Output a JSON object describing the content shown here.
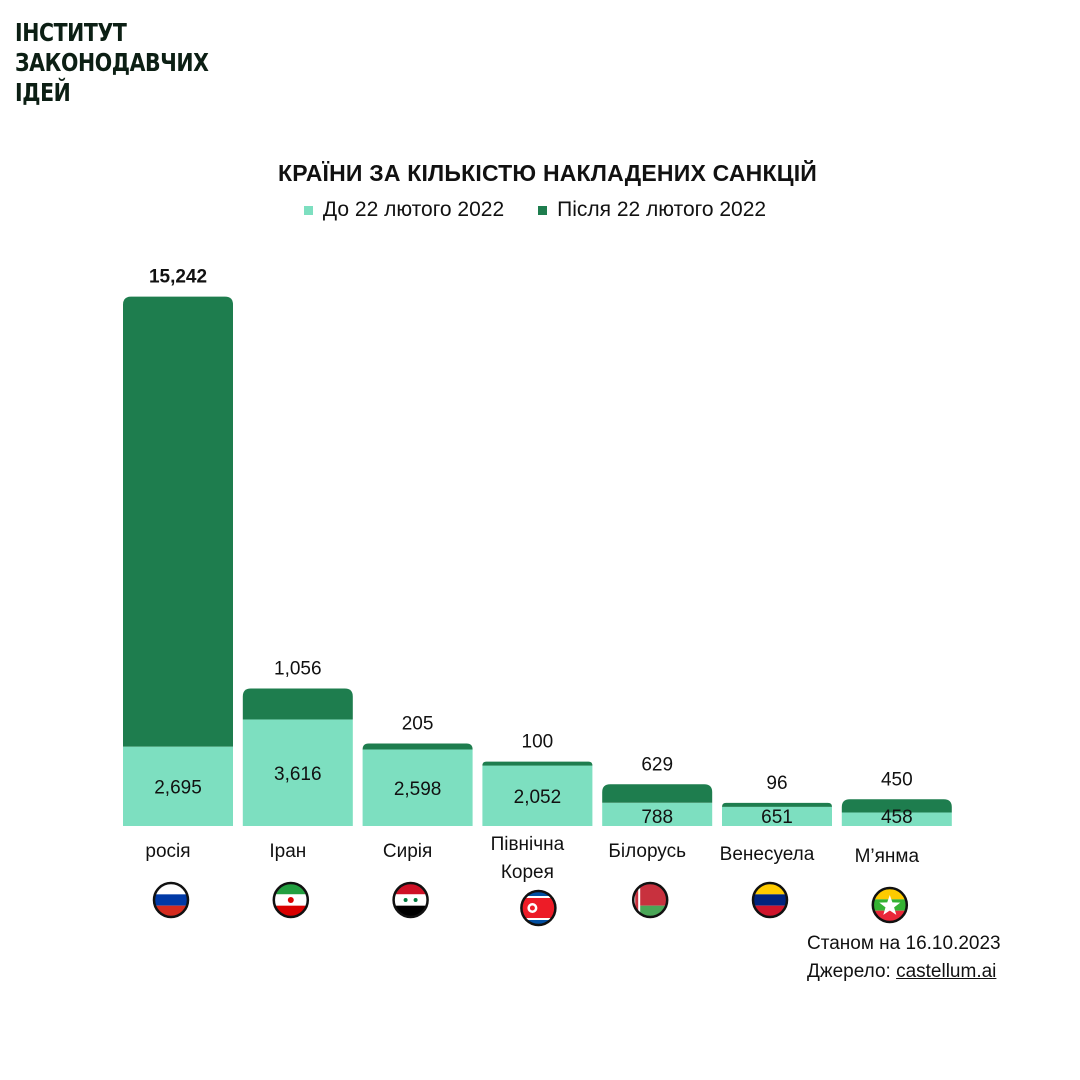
{
  "brand": {
    "logo_lines": [
      "ІНСТИТУТ",
      "ЗАКОНОДАВЧИХ",
      "ІДЕЙ"
    ]
  },
  "colors": {
    "before": "#7ddfc0",
    "after": "#1e7d4e",
    "text": "#111111"
  },
  "chart_data": {
    "type": "bar",
    "stacked": true,
    "title": "КРАЇНИ ЗА КІЛЬКІСТЮ НАКЛАДЕНИХ САНКЦІЙ",
    "legend_position": "top-center",
    "categories": [
      "росія",
      "Іран",
      "Сирія",
      "Північна Корея",
      "Білорусь",
      "Венесуела",
      "М’янма"
    ],
    "category_lines": [
      [
        "росія"
      ],
      [
        "Іран"
      ],
      [
        "Сирія"
      ],
      [
        "Північна",
        "Корея"
      ],
      [
        "Білорусь"
      ],
      [
        "Венесуела"
      ],
      [
        "М’янма"
      ]
    ],
    "flags": [
      "russia-flag-icon",
      "iran-flag-icon",
      "syria-flag-icon",
      "north-korea-flag-icon",
      "belarus-flag-icon",
      "venezuela-flag-icon",
      "myanmar-flag-icon"
    ],
    "series": [
      {
        "name": "До 22 лютого 2022",
        "values": [
          2695,
          3616,
          2598,
          2052,
          788,
          651,
          458
        ]
      },
      {
        "name": "Після 22 лютого 2022",
        "values": [
          15242,
          1056,
          205,
          100,
          629,
          96,
          450
        ]
      }
    ],
    "value_labels": {
      "before": [
        "2,695",
        "3,616",
        "2,598",
        "2,052",
        "788",
        "651",
        "458"
      ],
      "after": [
        "15,242",
        "1,056",
        "205",
        "100",
        "629",
        "96",
        "450"
      ]
    },
    "grid": false,
    "ylim": [
      0,
      17937
    ]
  },
  "footer": {
    "as_of": "Станом на 16.10.2023",
    "source_label": "Джерело: ",
    "source_link": "castellum.ai"
  }
}
